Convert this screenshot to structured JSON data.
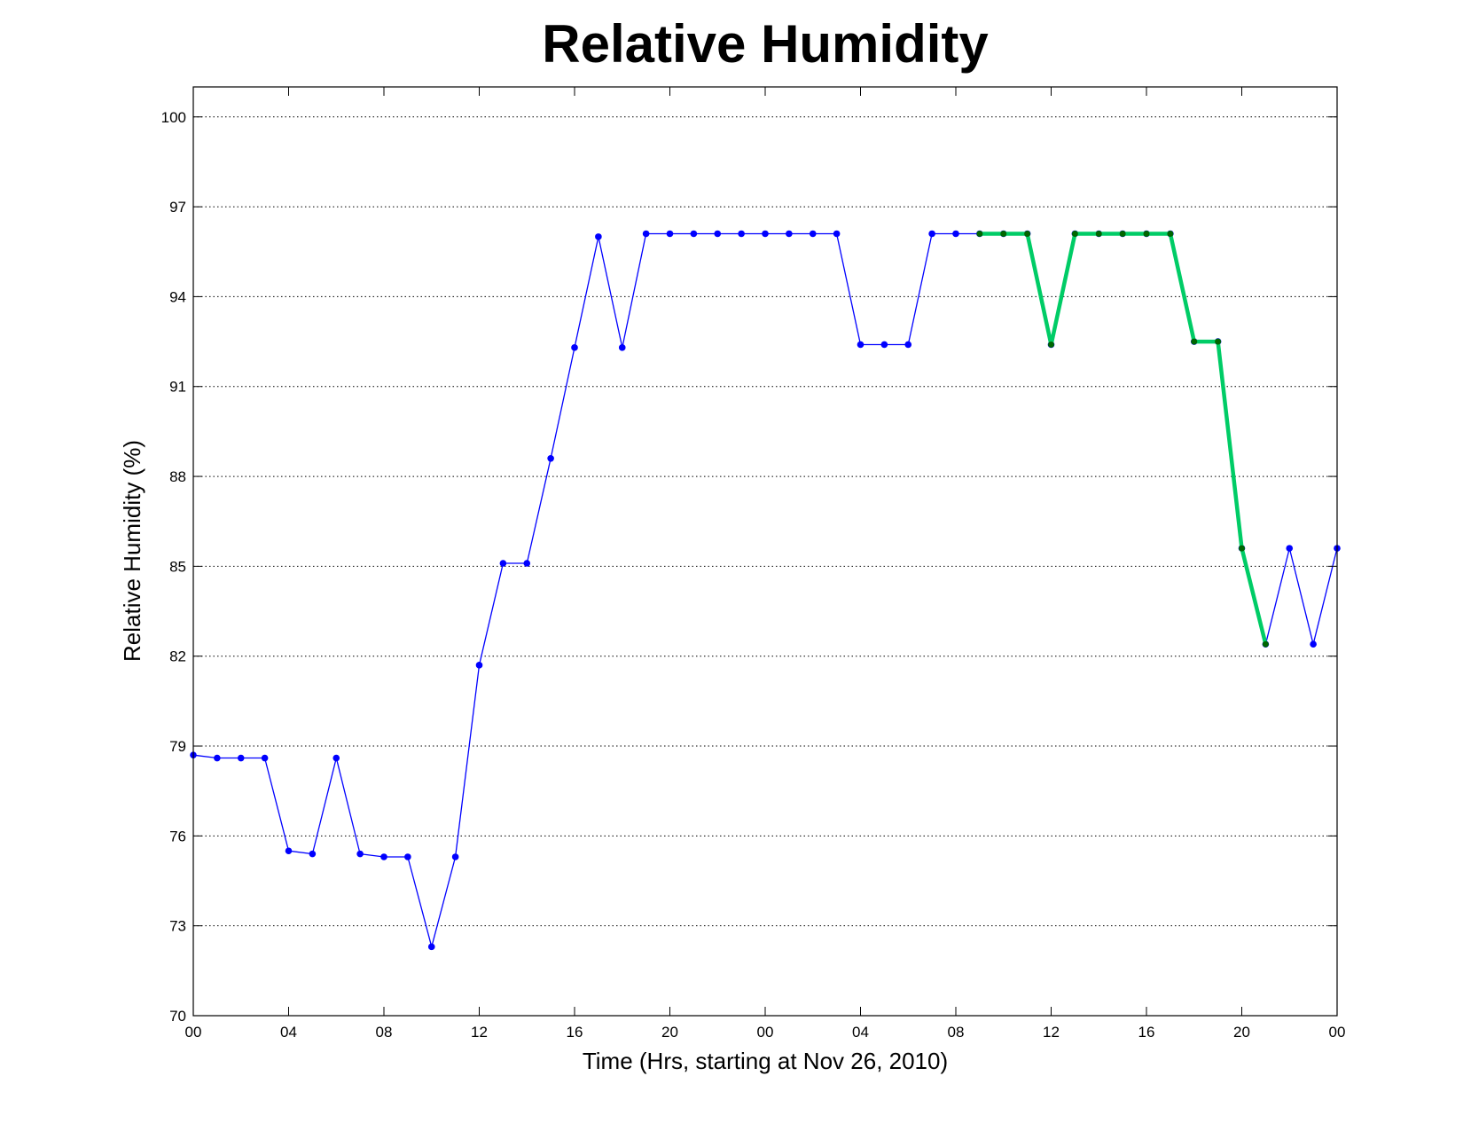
{
  "chart_data": {
    "type": "line",
    "title": "Relative Humidity",
    "xlabel": "Time (Hrs, starting at Nov 26, 2010)",
    "ylabel": "Relative Humidity (%)",
    "ylim": [
      70,
      101
    ],
    "xlim": [
      0,
      48
    ],
    "yticks": [
      70,
      73,
      76,
      79,
      82,
      85,
      88,
      91,
      94,
      97,
      100
    ],
    "xticks": [
      0,
      4,
      8,
      12,
      16,
      20,
      24,
      28,
      32,
      36,
      40,
      44,
      48
    ],
    "xtick_labels": [
      "00",
      "04",
      "08",
      "12",
      "16",
      "20",
      "00",
      "04",
      "08",
      "12",
      "16",
      "20",
      "00"
    ],
    "grid": "y-dotted",
    "series": [
      {
        "color": "#0000ff",
        "x": [
          0,
          1,
          2,
          3,
          4,
          5,
          6,
          7,
          8,
          9,
          10,
          11,
          12,
          13,
          14,
          15,
          16,
          17,
          18,
          19,
          20,
          21,
          22,
          23,
          24,
          25,
          26,
          27,
          28,
          29,
          30,
          31,
          32,
          33,
          34,
          35,
          36,
          37,
          38,
          39,
          40,
          41,
          42,
          43,
          44,
          45,
          46,
          47,
          48
        ],
        "values": [
          78.7,
          78.6,
          78.6,
          78.6,
          75.5,
          75.4,
          78.6,
          75.4,
          75.3,
          75.3,
          72.3,
          75.3,
          81.7,
          85.1,
          85.1,
          88.6,
          92.3,
          96.0,
          92.3,
          96.1,
          96.1,
          96.1,
          96.1,
          96.1,
          96.1,
          96.1,
          96.1,
          96.1,
          92.4,
          92.4,
          92.4,
          96.1,
          96.1,
          96.1,
          96.1,
          96.1,
          92.4,
          96.1,
          96.1,
          96.1,
          96.1,
          96.1,
          92.5,
          92.5,
          85.6,
          82.4,
          85.6,
          82.4,
          85.6
        ]
      },
      {
        "color": "#00cc66",
        "marker_color": "#006600",
        "x": [
          33,
          34,
          35,
          36,
          37,
          38,
          39,
          40,
          41,
          42,
          43,
          44,
          45
        ],
        "values": [
          96.1,
          96.1,
          96.1,
          92.4,
          96.1,
          96.1,
          96.1,
          96.1,
          96.1,
          92.5,
          92.5,
          85.6,
          82.4
        ]
      }
    ]
  }
}
